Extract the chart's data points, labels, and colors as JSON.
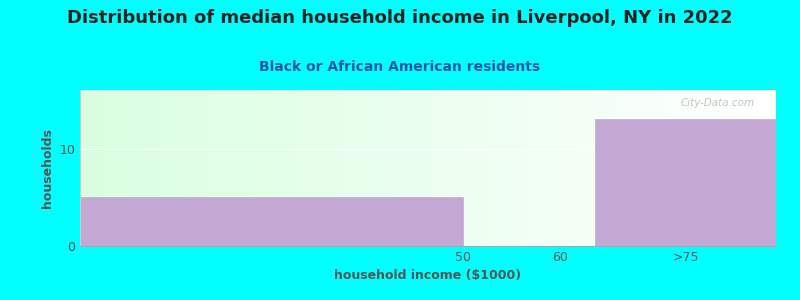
{
  "title": "Distribution of median household income in Liverpool, NY in 2022",
  "subtitle": "Black or African American residents",
  "xlabel": "household income ($1000)",
  "ylabel": "households",
  "background_color": "#00FFFF",
  "bar_color": "#c4a8d4",
  "bar_edge_color": "#c4a8d4",
  "values": [
    5,
    0,
    13
  ],
  "ylim": [
    0,
    16
  ],
  "yticks": [
    0,
    10
  ],
  "title_fontsize": 13,
  "subtitle_fontsize": 10,
  "label_fontsize": 9,
  "tick_fontsize": 9,
  "title_color": "#222222",
  "subtitle_color": "#2255aa",
  "axis_color": "#555555",
  "watermark_text": "City-Data.com",
  "watermark_color": "#bbbbbb",
  "grad_color_left": "#d8f0d0",
  "grad_color_right": "#ffffff"
}
